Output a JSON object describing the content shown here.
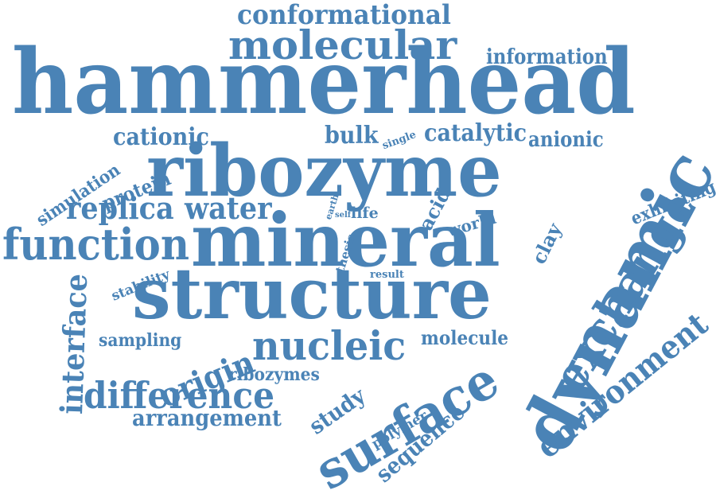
{
  "color": "#4a83b6",
  "words": [
    "conformational",
    "molecular",
    "information",
    "hammerhead",
    "cationic",
    "bulk",
    "single",
    "catalytic",
    "anionic",
    "ribozyme",
    "simulation",
    "protein",
    "replica",
    "water",
    "earth",
    "self",
    "life",
    "acid",
    "world",
    "dynamic",
    "exhibiting",
    "function",
    "mineral",
    "thesis",
    "clay",
    "stability",
    "result",
    "structure",
    "interface",
    "exchange",
    "sampling",
    "origin",
    "nucleic",
    "molecule",
    "environment",
    "ribozymes",
    "difference",
    "study",
    "surface",
    "arrangement",
    "polymer",
    "sequence"
  ]
}
